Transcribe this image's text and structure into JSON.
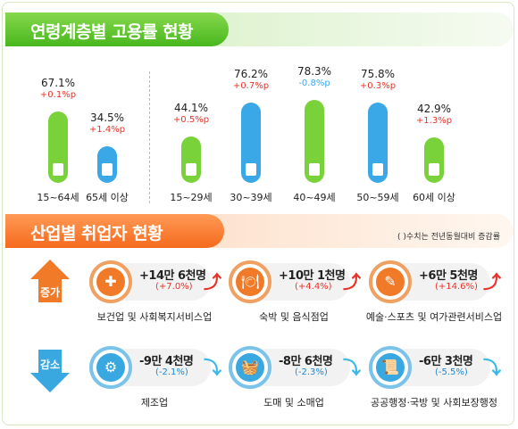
{
  "colors": {
    "green": "#7ad23b",
    "blue": "#3aa8e6",
    "red": "#e8332a",
    "up_orange": "#f07a28",
    "down_blue": "#1e88d0"
  },
  "sections": {
    "employment_title": "연령계층별 고용률 현황",
    "industry_title": "산업별 취업자 현황",
    "note": "( )수치는 전년동월대비 증감률"
  },
  "chart_data": {
    "type": "bar",
    "title": "연령계층별 고용률 현황",
    "unit": "%",
    "categories": [
      "15~64세",
      "65세 이상",
      "15~29세",
      "30~39세",
      "40~49세",
      "50~59세",
      "60세 이상"
    ],
    "values": [
      67.1,
      34.5,
      44.1,
      76.2,
      78.3,
      75.8,
      42.9
    ],
    "labels": [
      "67.1%",
      "34.5%",
      "44.1%",
      "76.2%",
      "78.3%",
      "75.8%",
      "42.9%"
    ],
    "changes": [
      "+0.1%p",
      "+1.4%p",
      "+0.5%p",
      "+0.7%p",
      "-0.8%p",
      "+0.3%p",
      "+1.3%p"
    ],
    "bar_colors": [
      "green",
      "blue",
      "green",
      "blue",
      "green",
      "blue",
      "green"
    ],
    "ylim": [
      0,
      80
    ]
  },
  "industry": {
    "increase_label": "증가",
    "decrease_label": "감소",
    "increase": [
      {
        "amount": "+14만 6천명",
        "rate": "(+7.0%)",
        "name": "보건업 및 사회복지서비스업",
        "icon": "first-aid-kit-icon"
      },
      {
        "amount": "+10만 1천명",
        "rate": "(+4.4%)",
        "name": "숙박 및 음식점업",
        "icon": "dining-plate-icon"
      },
      {
        "amount": "+6만 5천명",
        "rate": "(+14.6%)",
        "name": "예술·스포츠 및 여가관련서비스업",
        "icon": "art-brush-icon"
      }
    ],
    "decrease": [
      {
        "amount": "-9만 4천명",
        "rate": "(-2.1%)",
        "name": "제조업",
        "icon": "gear-icon"
      },
      {
        "amount": "-8만 6천명",
        "rate": "(-2.3%)",
        "name": "도매 및 소매업",
        "icon": "shopping-basket-icon"
      },
      {
        "amount": "-6만 3천명",
        "rate": "(-5.5%)",
        "name": "공공행정·국방 및 사회보장행정",
        "icon": "document-scroll-icon"
      }
    ]
  }
}
